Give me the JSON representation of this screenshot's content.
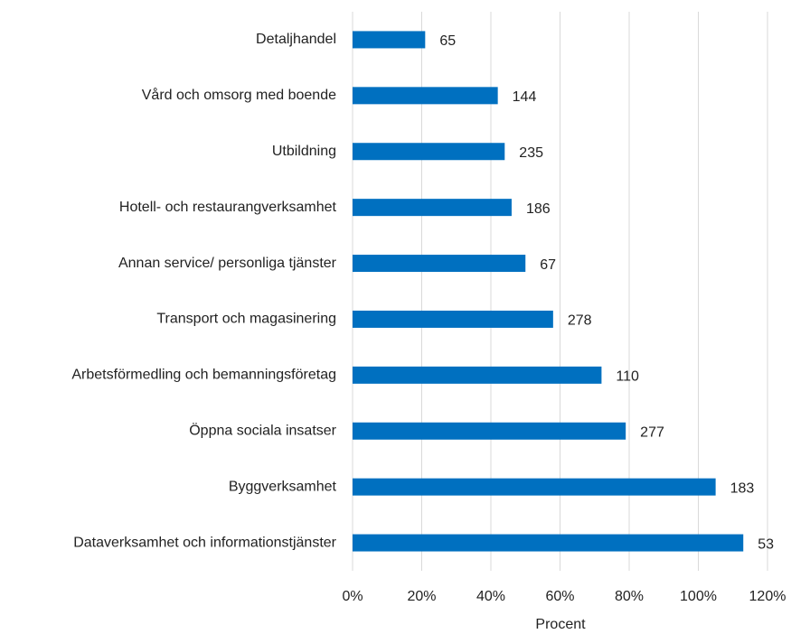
{
  "chart_data": {
    "type": "bar",
    "orientation": "horizontal",
    "categories": [
      "Detaljhandel",
      "Vård och omsorg med boende",
      "Utbildning",
      "Hotell- och restaurangverksamhet",
      "Annan service/ personliga tjänster",
      "Transport och magasinering",
      "Arbetsförmedling och bemanningsföretag",
      "Öppna sociala insatser",
      "Byggverksamhet",
      "Dataverksamhet och informationstjänster"
    ],
    "values": [
      21,
      42,
      44,
      46,
      50,
      58,
      72,
      79,
      105,
      113
    ],
    "data_labels": [
      65,
      144,
      235,
      186,
      67,
      278,
      110,
      277,
      183,
      53
    ],
    "color": "#0070c0",
    "xlabel": "Procent",
    "xlim": [
      0,
      120
    ],
    "xticks": [
      {
        "value": 0,
        "label": "0%"
      },
      {
        "value": 20,
        "label": "20%"
      },
      {
        "value": 40,
        "label": "40%"
      },
      {
        "value": 60,
        "label": "60%"
      },
      {
        "value": 80,
        "label": "80%"
      },
      {
        "value": 100,
        "label": "100%"
      },
      {
        "value": 120,
        "label": "120%"
      }
    ],
    "grid": true
  }
}
